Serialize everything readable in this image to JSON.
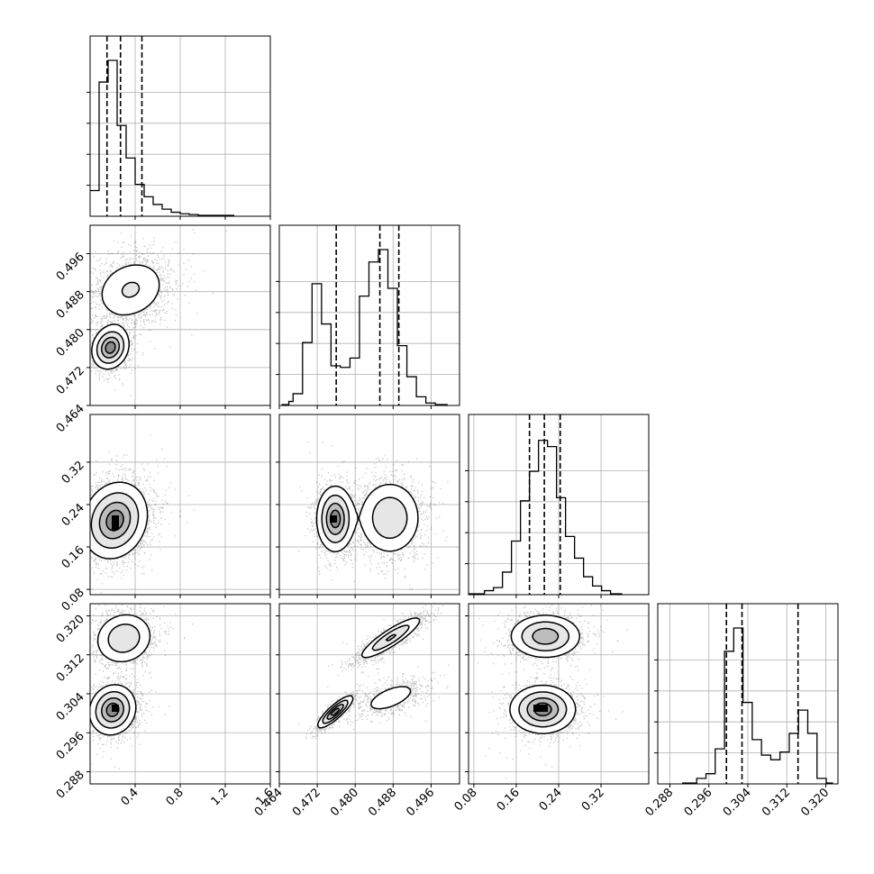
{
  "chart_data": {
    "type": "corner",
    "parameters": [
      {
        "range": [
          0.0,
          1.6
        ],
        "ticks": [
          "0.4",
          "0.8",
          "1.2",
          "1.6"
        ],
        "tick_values": [
          0.4,
          0.8,
          1.2,
          1.6
        ],
        "quantiles": [
          0.15,
          0.27,
          0.46
        ],
        "hist": {
          "edges": [
            0.0,
            0.08,
            0.16,
            0.24,
            0.32,
            0.4,
            0.48,
            0.56,
            0.64,
            0.72,
            0.8,
            0.88,
            0.96,
            1.04,
            1.12,
            1.2,
            1.28
          ],
          "counts": [
            0.16,
            0.86,
            1.0,
            0.58,
            0.37,
            0.2,
            0.12,
            0.07,
            0.04,
            0.02,
            0.01,
            0.005,
            0.0,
            0.0,
            0.0,
            0.0
          ]
        }
      },
      {
        "range": [
          0.464,
          0.502
        ],
        "ticks": [
          "0.464",
          "0.472",
          "0.480",
          "0.488",
          "0.496"
        ],
        "tick_values": [
          0.464,
          0.472,
          0.48,
          0.488,
          0.496
        ],
        "quantiles": [
          0.476,
          0.4852,
          0.4892
        ],
        "hist": {
          "edges": [
            0.4645,
            0.466,
            0.4669,
            0.4689,
            0.4709,
            0.4729,
            0.4749,
            0.4769,
            0.4789,
            0.4809,
            0.4829,
            0.4849,
            0.4869,
            0.4889,
            0.4909,
            0.4929,
            0.4949,
            0.4969,
            0.4995
          ],
          "counts": [
            0.0,
            0.02,
            0.07,
            0.4,
            0.78,
            0.52,
            0.25,
            0.24,
            0.3,
            0.7,
            0.92,
            1.0,
            0.75,
            0.38,
            0.18,
            0.05,
            0.01,
            0.0
          ]
        }
      },
      {
        "range": [
          0.07,
          0.41
        ],
        "ticks": [
          "0.08",
          "0.16",
          "0.24",
          "0.32"
        ],
        "tick_values": [
          0.08,
          0.16,
          0.24,
          0.32
        ],
        "quantiles": [
          0.185,
          0.213,
          0.243
        ],
        "hist": {
          "edges": [
            0.07,
            0.1,
            0.117,
            0.134,
            0.151,
            0.168,
            0.185,
            0.202,
            0.219,
            0.236,
            0.253,
            0.27,
            0.287,
            0.304,
            0.321,
            0.338,
            0.36
          ],
          "counts": [
            0.0,
            0.02,
            0.04,
            0.14,
            0.34,
            0.6,
            0.79,
            0.99,
            0.95,
            0.62,
            0.37,
            0.23,
            0.11,
            0.05,
            0.02,
            0.0
          ]
        }
      },
      {
        "range": [
          0.2855,
          0.3225
        ],
        "ticks": [
          "0.288",
          "0.296",
          "0.304",
          "0.312",
          "0.320"
        ],
        "tick_values": [
          0.288,
          0.296,
          0.304,
          0.312,
          0.32
        ],
        "quantiles": [
          0.2996,
          0.3028,
          0.3143
        ],
        "hist": {
          "edges": [
            0.2905,
            0.2935,
            0.2954,
            0.2973,
            0.2992,
            0.3011,
            0.303,
            0.3049,
            0.3068,
            0.3087,
            0.3106,
            0.3125,
            0.3144,
            0.3163,
            0.3182,
            0.3201,
            0.3215
          ],
          "counts": [
            0.0,
            0.03,
            0.06,
            0.22,
            0.85,
            1.0,
            0.52,
            0.28,
            0.18,
            0.15,
            0.2,
            0.32,
            0.47,
            0.32,
            0.03,
            0.0
          ]
        }
      }
    ],
    "pairs": [
      {
        "row": 1,
        "col": 0,
        "x_key": 0,
        "y_key": 1,
        "modes": [
          {
            "x": 0.36,
            "y": 0.4884,
            "sx": 0.17,
            "sy": 0.0035,
            "w": 0.55,
            "rho": 0.2
          },
          {
            "x": 0.18,
            "y": 0.4762,
            "sx": 0.08,
            "sy": 0.0022,
            "w": 0.45,
            "rho": 0.15
          }
        ]
      },
      {
        "row": 2,
        "col": 0,
        "x_key": 0,
        "y_key": 2,
        "modes": [
          {
            "x": 0.22,
            "y": 0.21,
            "sx": 0.14,
            "sy": 0.035,
            "w": 1.0,
            "rho": 0.15
          }
        ]
      },
      {
        "row": 2,
        "col": 1,
        "x_key": 1,
        "y_key": 2,
        "modes": [
          {
            "x": 0.4758,
            "y": 0.213,
            "sx": 0.0019,
            "sy": 0.03,
            "w": 0.45,
            "rho": 0.0
          },
          {
            "x": 0.4873,
            "y": 0.215,
            "sx": 0.0033,
            "sy": 0.035,
            "w": 0.55,
            "rho": 0.0
          }
        ]
      },
      {
        "row": 3,
        "col": 0,
        "x_key": 0,
        "y_key": 3,
        "modes": [
          {
            "x": 0.3,
            "y": 0.3154,
            "sx": 0.13,
            "sy": 0.0027,
            "w": 0.45,
            "rho": 0.1
          },
          {
            "x": 0.2,
            "y": 0.3007,
            "sx": 0.1,
            "sy": 0.0025,
            "w": 0.55,
            "rho": 0.1
          }
        ]
      },
      {
        "row": 3,
        "col": 1,
        "x_key": 1,
        "y_key": 3,
        "modes": [
          {
            "x": 0.4875,
            "y": 0.3155,
            "sx": 0.0033,
            "sy": 0.0022,
            "w": 0.45,
            "rho": 0.88
          },
          {
            "x": 0.4758,
            "y": 0.3003,
            "sx": 0.0018,
            "sy": 0.0016,
            "w": 0.3,
            "rho": 0.85
          },
          {
            "x": 0.4875,
            "y": 0.3032,
            "sx": 0.0033,
            "sy": 0.0018,
            "w": 0.25,
            "rho": 0.6
          }
        ]
      },
      {
        "row": 3,
        "col": 2,
        "x_key": 2,
        "y_key": 3,
        "modes": [
          {
            "x": 0.215,
            "y": 0.3158,
            "sx": 0.033,
            "sy": 0.0022,
            "w": 0.45,
            "rho": 0.0
          },
          {
            "x": 0.21,
            "y": 0.3008,
            "sx": 0.03,
            "sy": 0.0024,
            "w": 0.55,
            "rho": 0.0
          }
        ]
      }
    ],
    "grid": true,
    "quantile_linestyle": "dashed",
    "contour_levels": [
      0.12,
      0.33,
      0.62,
      0.86
    ]
  }
}
